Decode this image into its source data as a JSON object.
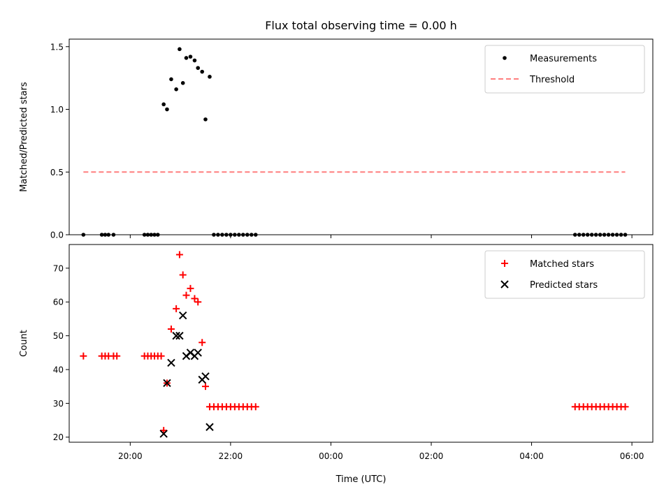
{
  "chart_data": [
    {
      "type": "scatter",
      "title": "Flux total observing time = 0.00 h",
      "xlabel": "",
      "ylabel": "Matched/Predicted stars",
      "xlim": [
        "18:47",
        "06:25"
      ],
      "ylim": [
        0,
        1.56
      ],
      "yticks": [
        0.0,
        0.5,
        1.0,
        1.5
      ],
      "ytick_labels": [
        "0.0",
        "0.5",
        "1.0",
        "1.5"
      ],
      "grid": false,
      "legend": {
        "position": "top-right",
        "entries": [
          "Measurements",
          "Threshold"
        ]
      },
      "colors": {
        "Measurements": "#000000",
        "Threshold": "#ff7f7f"
      },
      "series": [
        {
          "name": "Measurements",
          "style": "dot",
          "points": [
            [
              "19:04",
              0.0
            ],
            [
              "19:26",
              0.0
            ],
            [
              "19:30",
              0.0
            ],
            [
              "19:34",
              0.0
            ],
            [
              "19:40",
              0.0
            ],
            [
              "20:17",
              0.0
            ],
            [
              "20:21",
              0.0
            ],
            [
              "20:25",
              0.0
            ],
            [
              "20:29",
              0.0
            ],
            [
              "20:33",
              0.0
            ],
            [
              "20:40",
              1.04
            ],
            [
              "20:44",
              1.0
            ],
            [
              "20:49",
              1.24
            ],
            [
              "20:55",
              1.16
            ],
            [
              "20:59",
              1.48
            ],
            [
              "21:03",
              1.21
            ],
            [
              "21:07",
              1.41
            ],
            [
              "21:12",
              1.42
            ],
            [
              "21:17",
              1.39
            ],
            [
              "21:21",
              1.33
            ],
            [
              "21:26",
              1.3
            ],
            [
              "21:30",
              0.92
            ],
            [
              "21:35",
              1.26
            ],
            [
              "21:40",
              0.0
            ],
            [
              "21:45",
              0.0
            ],
            [
              "21:50",
              0.0
            ],
            [
              "21:55",
              0.0
            ],
            [
              "22:00",
              0.0
            ],
            [
              "22:05",
              0.0
            ],
            [
              "22:10",
              0.0
            ],
            [
              "22:15",
              0.0
            ],
            [
              "22:20",
              0.0
            ],
            [
              "22:25",
              0.0
            ],
            [
              "22:30",
              0.0
            ],
            [
              "04:52",
              0.0
            ],
            [
              "04:57",
              0.0
            ],
            [
              "05:02",
              0.0
            ],
            [
              "05:07",
              0.0
            ],
            [
              "05:12",
              0.0
            ],
            [
              "05:17",
              0.0
            ],
            [
              "05:22",
              0.0
            ],
            [
              "05:27",
              0.0
            ],
            [
              "05:32",
              0.0
            ],
            [
              "05:37",
              0.0
            ],
            [
              "05:42",
              0.0
            ],
            [
              "05:47",
              0.0
            ],
            [
              "05:52",
              0.0
            ]
          ]
        },
        {
          "name": "Threshold",
          "style": "dashed-line",
          "points": [
            [
              "19:04",
              0.5
            ],
            [
              "05:52",
              0.5
            ]
          ]
        }
      ]
    },
    {
      "type": "scatter",
      "title": "",
      "xlabel": "Time (UTC)",
      "ylabel": "Count",
      "xlim": [
        "18:47",
        "06:25"
      ],
      "ylim": [
        18.5,
        77
      ],
      "xticks": [
        "20:00",
        "22:00",
        "00:00",
        "02:00",
        "04:00",
        "06:00"
      ],
      "yticks": [
        20,
        30,
        40,
        50,
        60,
        70
      ],
      "ytick_labels": [
        "20",
        "30",
        "40",
        "50",
        "60",
        "70"
      ],
      "grid": false,
      "legend": {
        "position": "top-right",
        "entries": [
          "Matched stars",
          "Predicted stars"
        ]
      },
      "colors": {
        "Matched stars": "#ff0000",
        "Predicted stars": "#000000"
      },
      "series": [
        {
          "name": "Matched stars",
          "marker": "plus",
          "points": [
            [
              "19:04",
              44
            ],
            [
              "19:26",
              44
            ],
            [
              "19:30",
              44
            ],
            [
              "19:34",
              44
            ],
            [
              "19:40",
              44
            ],
            [
              "19:44",
              44
            ],
            [
              "20:17",
              44
            ],
            [
              "20:21",
              44
            ],
            [
              "20:25",
              44
            ],
            [
              "20:29",
              44
            ],
            [
              "20:33",
              44
            ],
            [
              "20:37",
              44
            ],
            [
              "20:40",
              22
            ],
            [
              "20:44",
              36
            ],
            [
              "20:49",
              52
            ],
            [
              "20:55",
              58
            ],
            [
              "20:59",
              74
            ],
            [
              "21:03",
              68
            ],
            [
              "21:07",
              62
            ],
            [
              "21:12",
              64
            ],
            [
              "21:17",
              61
            ],
            [
              "21:21",
              60
            ],
            [
              "21:26",
              48
            ],
            [
              "21:30",
              35
            ],
            [
              "21:35",
              29
            ],
            [
              "21:40",
              29
            ],
            [
              "21:45",
              29
            ],
            [
              "21:50",
              29
            ],
            [
              "21:55",
              29
            ],
            [
              "22:00",
              29
            ],
            [
              "22:05",
              29
            ],
            [
              "22:10",
              29
            ],
            [
              "22:15",
              29
            ],
            [
              "22:20",
              29
            ],
            [
              "22:25",
              29
            ],
            [
              "22:30",
              29
            ],
            [
              "04:52",
              29
            ],
            [
              "04:57",
              29
            ],
            [
              "05:02",
              29
            ],
            [
              "05:07",
              29
            ],
            [
              "05:12",
              29
            ],
            [
              "05:17",
              29
            ],
            [
              "05:22",
              29
            ],
            [
              "05:27",
              29
            ],
            [
              "05:32",
              29
            ],
            [
              "05:37",
              29
            ],
            [
              "05:42",
              29
            ],
            [
              "05:47",
              29
            ],
            [
              "05:52",
              29
            ]
          ]
        },
        {
          "name": "Predicted stars",
          "marker": "x",
          "points": [
            [
              "20:40",
              21
            ],
            [
              "20:44",
              36
            ],
            [
              "20:49",
              42
            ],
            [
              "20:55",
              50
            ],
            [
              "20:59",
              50
            ],
            [
              "21:03",
              56
            ],
            [
              "21:07",
              44
            ],
            [
              "21:12",
              45
            ],
            [
              "21:17",
              44
            ],
            [
              "21:21",
              45
            ],
            [
              "21:26",
              37
            ],
            [
              "21:30",
              38
            ],
            [
              "21:35",
              23
            ]
          ]
        }
      ]
    }
  ]
}
